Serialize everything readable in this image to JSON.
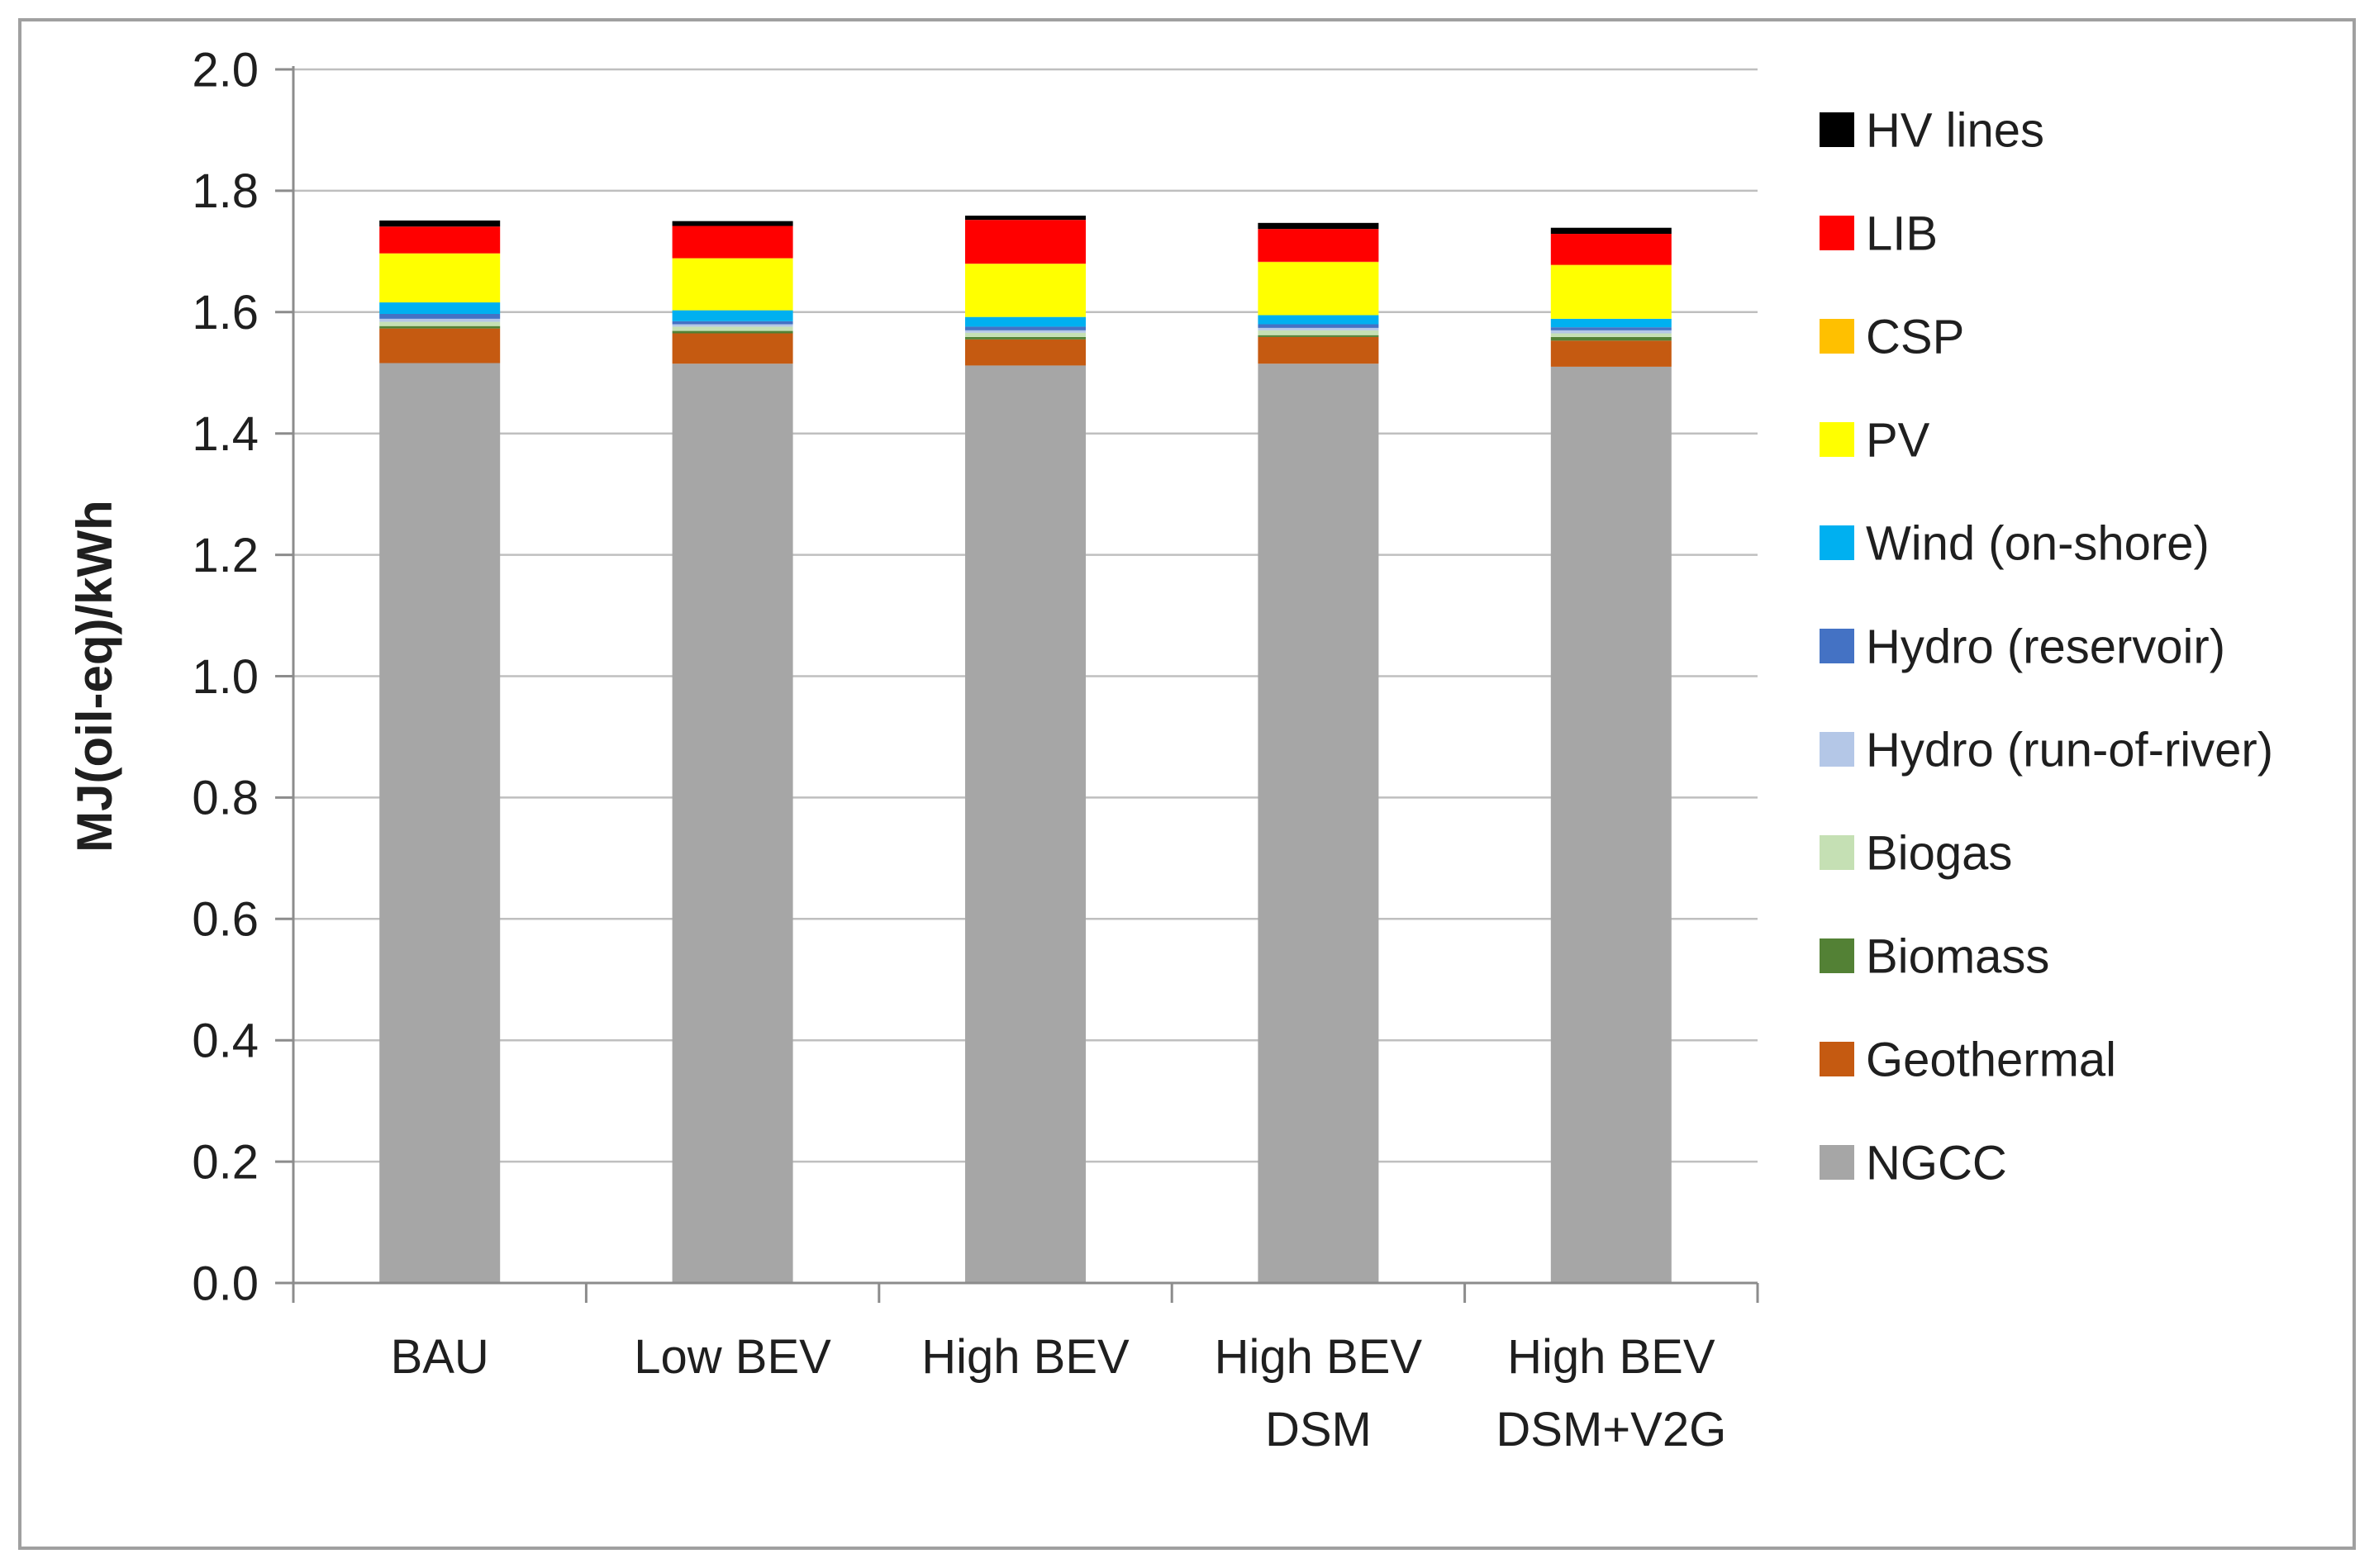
{
  "chart_data": {
    "type": "bar",
    "stacked": true,
    "title": "",
    "xlabel": "",
    "ylabel": "MJ(oil-eq)/kWh",
    "ylim": [
      0.0,
      2.0
    ],
    "ytick_step": 0.2,
    "ytick_labels": [
      "0.0",
      "0.2",
      "0.4",
      "0.6",
      "0.8",
      "1.0",
      "1.2",
      "1.4",
      "1.6",
      "1.8",
      "2.0"
    ],
    "grid": true,
    "legend_position": "right",
    "categories": [
      "BAU",
      "Low BEV",
      "High BEV",
      "High BEV\nDSM",
      "High BEV\nDSM+V2G"
    ],
    "series": [
      {
        "name": "NGCC",
        "color": "#a6a6a6",
        "values": [
          1.516,
          1.515,
          1.512,
          1.515,
          1.51
        ]
      },
      {
        "name": "Geothermal",
        "color": "#c55a11",
        "values": [
          0.057,
          0.05,
          0.043,
          0.044,
          0.043
        ]
      },
      {
        "name": "Biomass",
        "color": "#538135",
        "values": [
          0.004,
          0.004,
          0.004,
          0.003,
          0.006
        ]
      },
      {
        "name": "Biogas",
        "color": "#c5e0b4",
        "values": [
          0.007,
          0.007,
          0.007,
          0.008,
          0.006
        ]
      },
      {
        "name": "Hydro (run-of-river)",
        "color": "#b4c7e7",
        "values": [
          0.005,
          0.004,
          0.004,
          0.004,
          0.005
        ]
      },
      {
        "name": "Hydro (reservoir)",
        "color": "#4472c4",
        "values": [
          0.008,
          0.005,
          0.006,
          0.006,
          0.005
        ]
      },
      {
        "name": "Wind (on-shore)",
        "color": "#00b0f0",
        "values": [
          0.019,
          0.018,
          0.016,
          0.015,
          0.014
        ]
      },
      {
        "name": "PV",
        "color": "#ffff00",
        "values": [
          0.08,
          0.085,
          0.087,
          0.087,
          0.088
        ]
      },
      {
        "name": "CSP",
        "color": "#ffc000",
        "values": [
          0.001,
          0.001,
          0.001,
          0.001,
          0.001
        ]
      },
      {
        "name": "LIB",
        "color": "#ff0000",
        "values": [
          0.044,
          0.053,
          0.072,
          0.054,
          0.051
        ]
      },
      {
        "name": "HV lines",
        "color": "#000000",
        "values": [
          0.01,
          0.008,
          0.007,
          0.01,
          0.01
        ]
      }
    ],
    "bar_totals": [
      1.75,
      1.75,
      1.76,
      1.75,
      1.74
    ],
    "colors": {
      "background": "#ffffff",
      "frame_border": "#a0a0a0",
      "gridline": "#bfbfbf",
      "axis_line": "#8c8c8c",
      "text": "#1f1f1f"
    }
  }
}
